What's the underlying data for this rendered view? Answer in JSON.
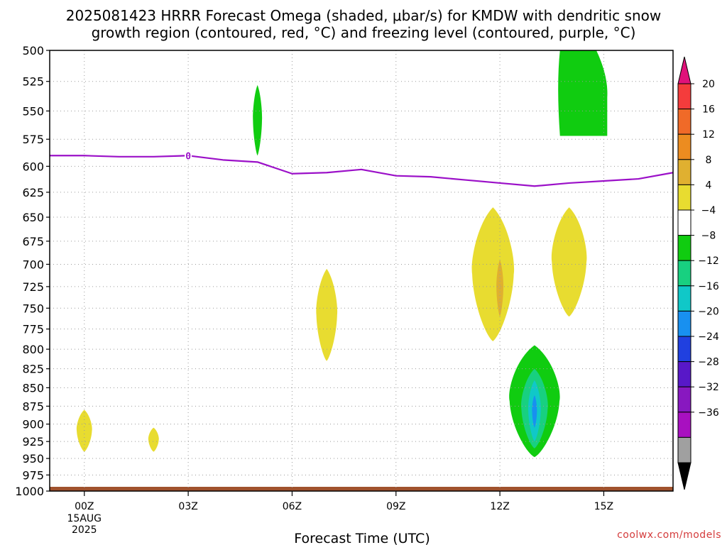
{
  "chart_data": {
    "type": "heatmap",
    "title_line1": "2025081423 HRRR Forecast Omega (shaded, μbar/s) for KMDW with dendritic snow",
    "title_line2": "growth region (contoured, red, °C) and freezing level (contoured, purple, °C)",
    "xlabel": "Forecast Time (UTC)",
    "credit": "coolwx.com/models",
    "x_hours": [
      0,
      3,
      6,
      9,
      12,
      15
    ],
    "x_tick_labels": [
      "00Z",
      "03Z",
      "06Z",
      "09Z",
      "12Z",
      "15Z"
    ],
    "x_first_date": [
      "15AUG",
      "2025"
    ],
    "xlim_hours": [
      -1,
      17
    ],
    "y_ticks_hpa": [
      500,
      525,
      550,
      575,
      600,
      625,
      650,
      675,
      700,
      725,
      750,
      775,
      800,
      825,
      850,
      875,
      900,
      925,
      950,
      975,
      1000
    ],
    "ylim_hpa": [
      500,
      1000
    ],
    "y_scale": "log-pressure",
    "grid": true,
    "colorbar": {
      "labels": [
        "20",
        "16",
        "12",
        "8",
        "4",
        "−4",
        "−8",
        "−12",
        "−16",
        "−20",
        "−24",
        "−28",
        "−32",
        "−36"
      ],
      "colors_top_to_bottom": [
        "#e0127a",
        "#f43c3c",
        "#f06a28",
        "#ec8c20",
        "#e0b030",
        "#e8dc30",
        "#ffffff",
        "#10cc10",
        "#18d080",
        "#10c8c8",
        "#1890f0",
        "#2040e0",
        "#5818c8",
        "#8818c0",
        "#a810c0",
        "#a0a0a0",
        "#000000"
      ]
    },
    "freezing_level": {
      "color": "#9b10c8",
      "label": "0",
      "hours": [
        -1,
        0,
        1,
        2,
        3,
        4,
        5,
        6,
        7,
        8,
        9,
        10,
        11,
        12,
        13,
        14,
        15,
        16,
        17
      ],
      "pressure_hpa": [
        590,
        590,
        591,
        591,
        590,
        594,
        596,
        607,
        606,
        603,
        609,
        610,
        613,
        616,
        619,
        616,
        614,
        612,
        606
      ]
    },
    "omega_regions": [
      {
        "category": "4 to 8",
        "color": "#e8dc30",
        "center_hour": 0.0,
        "top_hpa": 880,
        "bottom_hpa": 940,
        "half_width_hours": 0.22
      },
      {
        "category": "4 to 8",
        "color": "#e8dc30",
        "center_hour": 2.0,
        "top_hpa": 905,
        "bottom_hpa": 940,
        "half_width_hours": 0.15
      },
      {
        "category": "4 to 8",
        "color": "#e8dc30",
        "center_hour": 7.0,
        "top_hpa": 705,
        "bottom_hpa": 815,
        "half_width_hours": 0.3
      },
      {
        "category": "4 to 8",
        "color": "#e8dc30",
        "center_hour": 11.8,
        "top_hpa": 640,
        "bottom_hpa": 790,
        "half_width_hours": 0.6
      },
      {
        "category": "8 to 12",
        "color": "#e0b030",
        "center_hour": 12.0,
        "top_hpa": 695,
        "bottom_hpa": 760,
        "half_width_hours": 0.1
      },
      {
        "category": "4 to 8",
        "color": "#e8dc30",
        "center_hour": 14.0,
        "top_hpa": 640,
        "bottom_hpa": 760,
        "half_width_hours": 0.5
      },
      {
        "category": "-8 to -4",
        "color": "#10cc10",
        "center_hour": 13.0,
        "top_hpa": 795,
        "bottom_hpa": 948,
        "half_width_hours": 0.72
      },
      {
        "category": "-12 to -8",
        "color": "#18d080",
        "center_hour": 13.0,
        "top_hpa": 825,
        "bottom_hpa": 935,
        "half_width_hours": 0.38
      },
      {
        "category": "-16 to -12",
        "color": "#10c8c8",
        "center_hour": 13.0,
        "top_hpa": 840,
        "bottom_hpa": 925,
        "half_width_hours": 0.18
      },
      {
        "category": "-20 to -16",
        "color": "#1890f0",
        "center_hour": 13.0,
        "top_hpa": 860,
        "bottom_hpa": 905,
        "half_width_hours": 0.07
      },
      {
        "category": "-8 to -4",
        "color": "#10cc10",
        "center_hour": 5.0,
        "top_hpa": 528,
        "bottom_hpa": 590,
        "half_width_hours": 0.13
      },
      {
        "category": "-8 to -4",
        "color": "#10cc10",
        "center_hour": 14.4,
        "top_hpa": 500,
        "bottom_hpa": 572,
        "half_width_hours": 0.7
      }
    ],
    "surface_band": {
      "color": "#a0522d",
      "hours": [
        -1,
        17
      ]
    }
  }
}
